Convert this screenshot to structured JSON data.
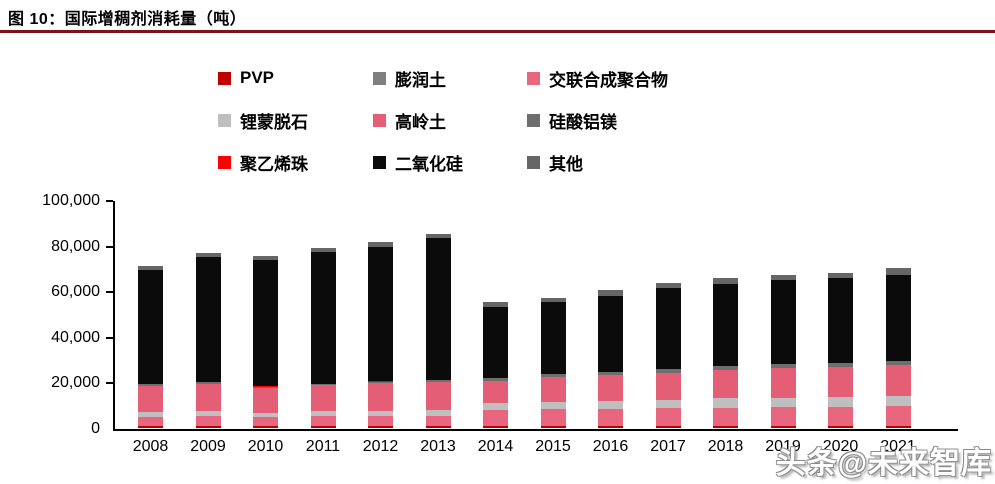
{
  "figure": {
    "title": "图 10：国际增稠剂消耗量（吨）",
    "accent_color": "#7D1315"
  },
  "watermark": {
    "text": "头条@未来智库"
  },
  "chart_data": {
    "type": "bar",
    "stacked": true,
    "title": "国际增稠剂消耗量（吨）",
    "categories": [
      "2008",
      "2009",
      "2010",
      "2011",
      "2012",
      "2013",
      "2014",
      "2015",
      "2016",
      "2017",
      "2018",
      "2019",
      "2020",
      "2021"
    ],
    "ylim": [
      0,
      100000
    ],
    "yticks": [
      0,
      20000,
      40000,
      60000,
      80000,
      100000
    ],
    "ytick_labels": [
      "0",
      "20,000",
      "40,000",
      "60,000",
      "80,000",
      "100,000"
    ],
    "grid": false,
    "legend_position": "top",
    "series": [
      {
        "name": "PVP",
        "color": "#C00000",
        "values": [
          900,
          900,
          900,
          900,
          900,
          900,
          900,
          900,
          900,
          900,
          900,
          900,
          900,
          1000
        ]
      },
      {
        "name": "膨润土",
        "color": "#7F7F7F",
        "values": [
          300,
          300,
          300,
          300,
          300,
          300,
          300,
          300,
          300,
          300,
          300,
          300,
          300,
          300
        ]
      },
      {
        "name": "交联合成聚合物",
        "color": "#E8677F",
        "values": [
          4000,
          4200,
          3700,
          4100,
          4300,
          4500,
          6800,
          7200,
          7400,
          7700,
          8000,
          8200,
          8300,
          8800
        ]
      },
      {
        "name": "锂蒙脱石",
        "color": "#BFBFBF",
        "values": [
          2200,
          2300,
          2100,
          2200,
          2300,
          2400,
          3000,
          3400,
          3600,
          3800,
          4000,
          4200,
          4300,
          4400
        ]
      },
      {
        "name": "高岭土",
        "color": "#E45E76",
        "values": [
          11500,
          12000,
          10700,
          11500,
          12100,
          12500,
          10000,
          10800,
          11300,
          11900,
          12600,
          13100,
          13300,
          13500
        ]
      },
      {
        "name": "硅酸铝镁",
        "color": "#6E6E6E",
        "values": [
          700,
          700,
          700,
          700,
          700,
          800,
          1200,
          1300,
          1400,
          1500,
          1600,
          1600,
          1600,
          1600
        ]
      },
      {
        "name": "聚乙烯珠",
        "color": "#FF0000",
        "values": [
          100,
          100,
          100,
          100,
          100,
          100,
          100,
          100,
          100,
          100,
          100,
          100,
          100,
          100
        ]
      },
      {
        "name": "二氧化硅",
        "color": "#0B0B0B",
        "values": [
          50000,
          54700,
          55400,
          57900,
          59300,
          62300,
          31200,
          31500,
          33400,
          35600,
          36100,
          37000,
          37200,
          38000
        ]
      },
      {
        "name": "其他",
        "color": "#666666",
        "values": [
          1800,
          1800,
          2000,
          1600,
          2000,
          1800,
          2200,
          2100,
          2300,
          2200,
          2400,
          2300,
          2500,
          2700
        ]
      }
    ],
    "totals": [
      71500,
      77000,
      75900,
      79300,
      82000,
      85600,
      55700,
      57600,
      60700,
      64000,
      66000,
      67700,
      68500,
      70400
    ]
  }
}
